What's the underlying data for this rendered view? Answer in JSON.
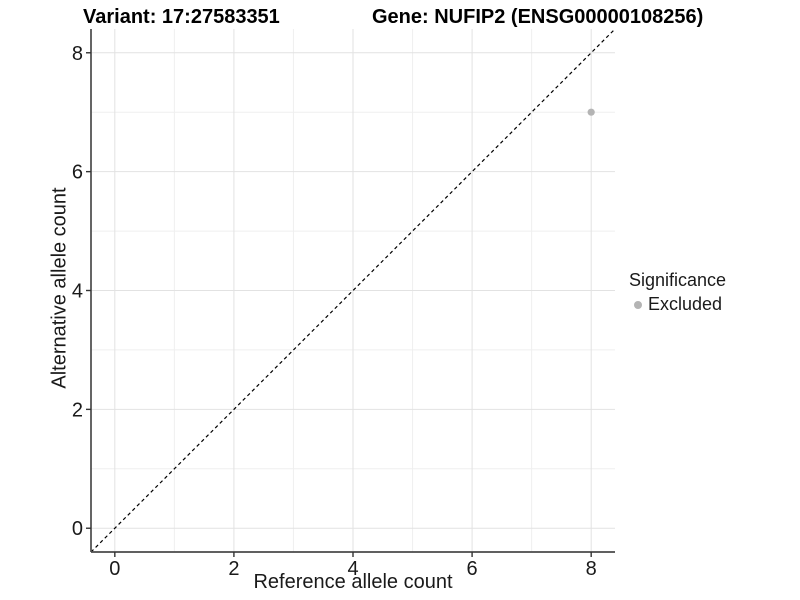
{
  "titles": {
    "variant": "Variant: 17:27583351",
    "gene": "Gene: NUFIP2 (ENSG00000108256)"
  },
  "chart_data": {
    "type": "scatter",
    "xlabel": "Reference allele count",
    "ylabel": "Alternative allele count",
    "xlim": [
      -0.4,
      8.4
    ],
    "ylim": [
      -0.4,
      8.4
    ],
    "x_ticks": [
      0,
      2,
      4,
      6,
      8
    ],
    "y_ticks": [
      0,
      2,
      4,
      6,
      8
    ],
    "x_minor": [
      1,
      3,
      5,
      7
    ],
    "y_minor": [
      1,
      3,
      5,
      7
    ],
    "grid": "major and minor gridlines on white panel",
    "series": [
      {
        "name": "Excluded",
        "color": "#b4b4b4",
        "points": [
          {
            "x": 8,
            "y": 7
          }
        ]
      }
    ],
    "reference_line": {
      "kind": "identity",
      "equation": "y = x",
      "style": "dashed",
      "color": "#000000",
      "from": -0.4,
      "to": 8.4
    },
    "legend": {
      "title": "Significance",
      "position": "right",
      "items": [
        {
          "label": "Excluded",
          "marker_color": "#b4b4b4"
        }
      ]
    },
    "colors": {
      "background": "#ffffff",
      "grid_major": "#e2e2e2",
      "grid_minor": "#efefef",
      "axis_line": "#4a4a4a",
      "tick_mark": "#333333",
      "tick_text": "#1a1a1a"
    }
  }
}
